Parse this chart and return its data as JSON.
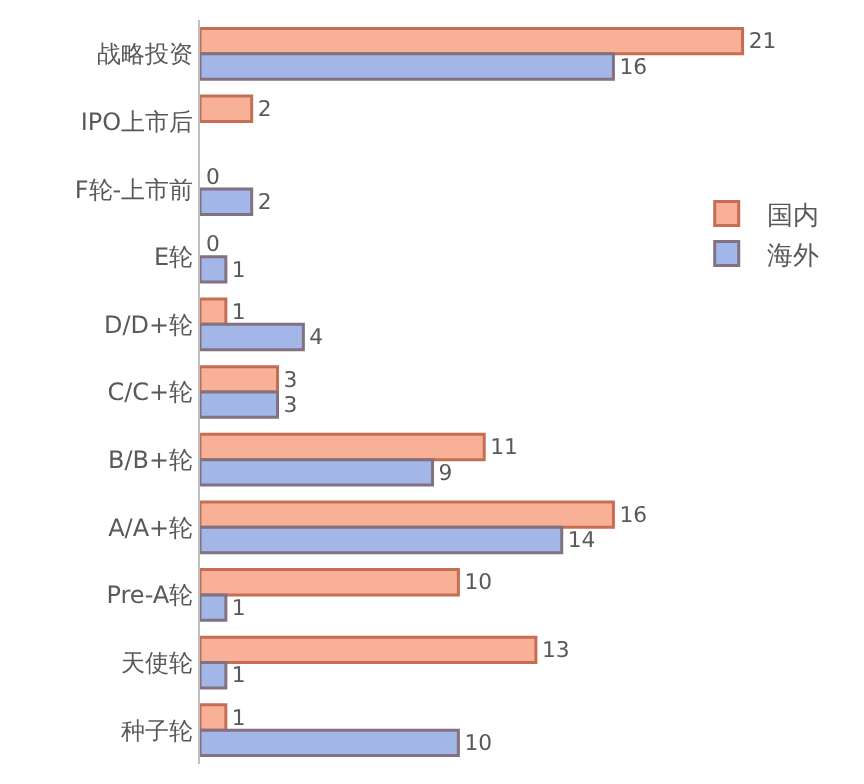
{
  "chart_data": {
    "type": "bar",
    "orientation": "horizontal",
    "data_labels": true,
    "legend": "right",
    "grid": false,
    "categories": [
      "战略投资",
      "IPO上市后",
      "F轮-上市前",
      "E轮",
      "D/D+轮",
      "C/C+轮",
      "B/B+轮",
      "A/A+轮",
      "Pre-A轮",
      "天使轮",
      "种子轮"
    ],
    "series": [
      {
        "name": "国内",
        "color": "#f8b196",
        "values": [
          21,
          2,
          0,
          0,
          1,
          3,
          11,
          16,
          10,
          13,
          1
        ]
      },
      {
        "name": "海外",
        "color": "#a3b6e8",
        "values": [
          16,
          null,
          2,
          1,
          4,
          3,
          9,
          14,
          1,
          1,
          10
        ]
      }
    ]
  }
}
